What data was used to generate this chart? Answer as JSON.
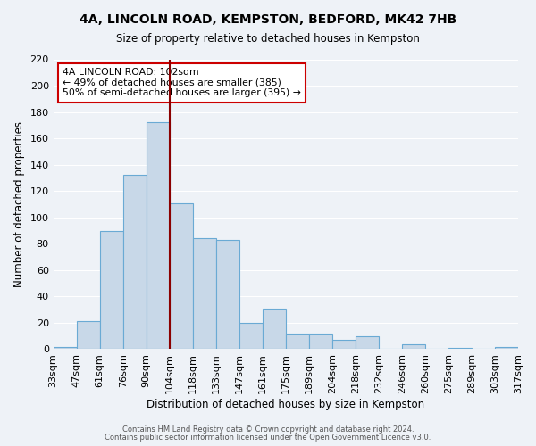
{
  "title": "4A, LINCOLN ROAD, KEMPSTON, BEDFORD, MK42 7HB",
  "subtitle": "Size of property relative to detached houses in Kempston",
  "xlabel": "Distribution of detached houses by size in Kempston",
  "ylabel": "Number of detached properties",
  "bin_labels": [
    "33sqm",
    "47sqm",
    "61sqm",
    "76sqm",
    "90sqm",
    "104sqm",
    "118sqm",
    "133sqm",
    "147sqm",
    "161sqm",
    "175sqm",
    "189sqm",
    "204sqm",
    "218sqm",
    "232sqm",
    "246sqm",
    "260sqm",
    "275sqm",
    "289sqm",
    "303sqm",
    "317sqm"
  ],
  "bar_values": [
    2,
    21,
    90,
    132,
    172,
    111,
    84,
    83,
    20,
    31,
    12,
    12,
    7,
    10,
    0,
    4,
    0,
    1,
    0,
    2
  ],
  "bar_color": "#c8d8e8",
  "bar_edge_color": "#6aaad4",
  "vline_color": "#8b0000",
  "vline_position": 4.5,
  "ylim": [
    0,
    220
  ],
  "yticks": [
    0,
    20,
    40,
    60,
    80,
    100,
    120,
    140,
    160,
    180,
    200,
    220
  ],
  "annotation_title": "4A LINCOLN ROAD: 102sqm",
  "annotation_line1": "← 49% of detached houses are smaller (385)",
  "annotation_line2": "50% of semi-detached houses are larger (395) →",
  "annotation_box_color": "#ffffff",
  "annotation_box_edge_color": "#cc0000",
  "footer1": "Contains HM Land Registry data © Crown copyright and database right 2024.",
  "footer2": "Contains public sector information licensed under the Open Government Licence v3.0.",
  "bg_color": "#eef2f7",
  "plot_bg_color": "#eef2f7"
}
